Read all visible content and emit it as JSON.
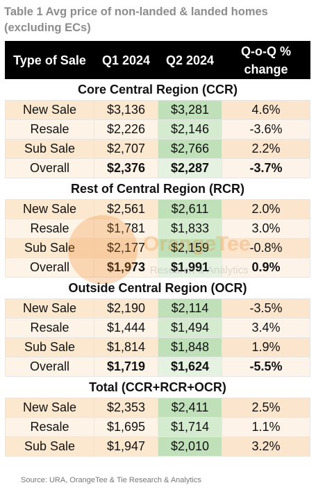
{
  "title": "Table 1 Avg price of non-landed & landed homes (excluding ECs)",
  "headers": {
    "type": "Type of Sale",
    "q1": "Q1 2024",
    "q2": "Q2 2024",
    "change": "Q-o-Q % change"
  },
  "sections": [
    {
      "name": "Core Central Region (CCR)",
      "rows": [
        {
          "label": "New Sale",
          "q1": "$3,136",
          "q2": "$3,281",
          "change": "4.6%"
        },
        {
          "label": "Resale",
          "q1": "$2,226",
          "q2": "$2,146",
          "change": "-3.6%"
        },
        {
          "label": "Sub Sale",
          "q1": "$2,707",
          "q2": "$2,766",
          "change": "2.2%"
        },
        {
          "label": "Overall",
          "q1": "$2,376",
          "q2": "$2,287",
          "change": "-3.7%"
        }
      ]
    },
    {
      "name": "Rest of Central Region (RCR)",
      "rows": [
        {
          "label": "New Sale",
          "q1": "$2,561",
          "q2": "$2,611",
          "change": "2.0%"
        },
        {
          "label": "Resale",
          "q1": "$1,781",
          "q2": "$1,833",
          "change": "3.0%"
        },
        {
          "label": "Sub Sale",
          "q1": "$2,177",
          "q2": "$2,159",
          "change": "-0.8%"
        },
        {
          "label": "Overall",
          "q1": "$1,973",
          "q2": "$1,991",
          "change": "0.9%"
        }
      ]
    },
    {
      "name": "Outside Central Region (OCR)",
      "rows": [
        {
          "label": "New Sale",
          "q1": "$2,190",
          "q2": "$2,114",
          "change": "-3.5%"
        },
        {
          "label": "Resale",
          "q1": "$1,444",
          "q2": "$1,494",
          "change": "3.4%"
        },
        {
          "label": "Sub Sale",
          "q1": "$1,814",
          "q2": "$1,848",
          "change": "1.9%"
        },
        {
          "label": "Overall",
          "q1": "$1,719",
          "q2": "$1,624",
          "change": "-5.5%"
        }
      ]
    },
    {
      "name": "Total (CCR+RCR+OCR)",
      "rows": [
        {
          "label": "New Sale",
          "q1": "$2,353",
          "q2": "$2,411",
          "change": "2.5%"
        },
        {
          "label": "Resale",
          "q1": "$1,695",
          "q2": "$1,714",
          "change": "1.1%"
        },
        {
          "label": "Sub Sale",
          "q1": "$1,947",
          "q2": "$2,010",
          "change": "3.2%"
        }
      ]
    }
  ],
  "watermark": {
    "name": "OrangeTee",
    "sub": "Research & Analytics",
    "color": "#f0892c"
  },
  "source": "Source: URA, OrangeTee & Tie Research & Analytics"
}
